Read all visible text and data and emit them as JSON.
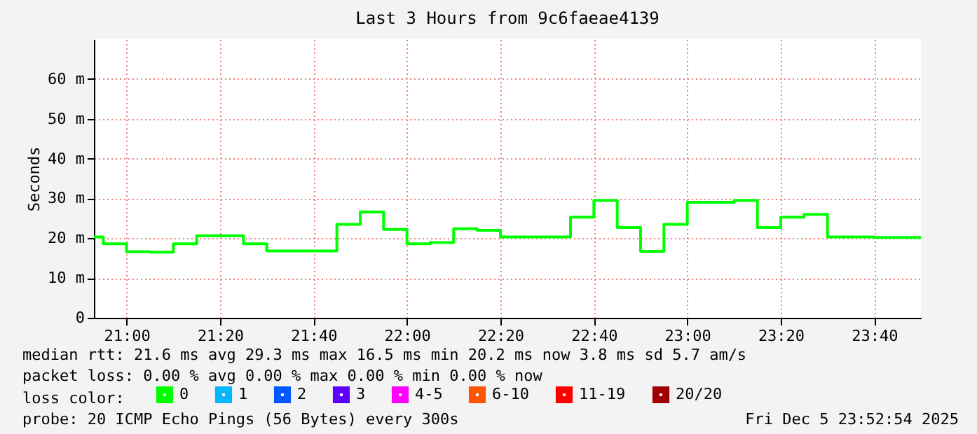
{
  "chart_data": {
    "type": "step",
    "title": "Last 3 Hours from 9c6faeae4139",
    "ylabel": "Seconds",
    "x": [
      "2025-12-05T20:53",
      "2025-12-05T20:55",
      "2025-12-05T21:00",
      "2025-12-05T21:05",
      "2025-12-05T21:10",
      "2025-12-05T21:15",
      "2025-12-05T21:20",
      "2025-12-05T21:25",
      "2025-12-05T21:30",
      "2025-12-05T21:35",
      "2025-12-05T21:40",
      "2025-12-05T21:45",
      "2025-12-05T21:50",
      "2025-12-05T21:55",
      "2025-12-05T22:00",
      "2025-12-05T22:05",
      "2025-12-05T22:10",
      "2025-12-05T22:15",
      "2025-12-05T22:20",
      "2025-12-05T22:25",
      "2025-12-05T22:30",
      "2025-12-05T22:35",
      "2025-12-05T22:40",
      "2025-12-05T22:45",
      "2025-12-05T22:50",
      "2025-12-05T22:55",
      "2025-12-05T23:00",
      "2025-12-05T23:05",
      "2025-12-05T23:10",
      "2025-12-05T23:15",
      "2025-12-05T23:20",
      "2025-12-05T23:25",
      "2025-12-05T23:30",
      "2025-12-05T23:35",
      "2025-12-05T23:40",
      "2025-12-05T23:45",
      "2025-12-05T23:50"
    ],
    "series": [
      {
        "name": "0",
        "color": "#00ff00",
        "values": [
          20.3,
          18.6,
          16.6,
          16.5,
          18.6,
          20.6,
          20.6,
          18.6,
          16.8,
          16.8,
          16.8,
          23.5,
          26.6,
          22.2,
          18.6,
          18.9,
          22.4,
          22.0,
          20.3,
          20.3,
          20.3,
          25.3,
          29.5,
          22.7,
          16.7,
          23.5,
          29.0,
          29.0,
          29.5,
          22.7,
          25.3,
          26.0,
          20.3,
          20.3,
          20.2,
          20.2,
          20.2
        ]
      },
      {
        "name": "1",
        "color": "#00b8ff",
        "values": [
          null,
          null,
          null,
          null,
          null,
          null,
          null,
          null,
          null,
          null,
          null,
          null,
          null,
          null,
          null,
          null,
          null,
          null,
          null,
          null,
          null,
          null,
          null,
          null,
          null,
          null,
          null,
          null,
          null,
          null,
          null,
          null,
          null,
          null,
          null,
          null,
          null
        ]
      },
      {
        "name": "2",
        "color": "#0059ff",
        "values": [
          null,
          null,
          null,
          null,
          null,
          null,
          null,
          null,
          null,
          null,
          null,
          null,
          null,
          null,
          null,
          null,
          null,
          null,
          null,
          null,
          null,
          null,
          null,
          null,
          null,
          null,
          null,
          null,
          null,
          null,
          null,
          null,
          null,
          null,
          null,
          null,
          null
        ]
      },
      {
        "name": "3",
        "color": "#5e00ff",
        "values": [
          null,
          null,
          null,
          null,
          null,
          null,
          null,
          null,
          null,
          null,
          null,
          null,
          null,
          null,
          null,
          null,
          null,
          null,
          null,
          null,
          null,
          null,
          null,
          null,
          null,
          null,
          null,
          null,
          null,
          null,
          null,
          null,
          null,
          null,
          null,
          null,
          null
        ]
      },
      {
        "name": "4-5",
        "color": "#ff00fe",
        "values": [
          null,
          null,
          null,
          null,
          null,
          null,
          null,
          null,
          null,
          null,
          null,
          null,
          null,
          null,
          null,
          null,
          null,
          null,
          null,
          null,
          null,
          null,
          null,
          null,
          null,
          null,
          null,
          null,
          null,
          null,
          null,
          null,
          null,
          null,
          null,
          null,
          null
        ]
      },
      {
        "name": "6-10",
        "color": "#ff5500",
        "values": [
          null,
          null,
          null,
          null,
          null,
          null,
          null,
          null,
          null,
          null,
          null,
          null,
          null,
          null,
          null,
          null,
          null,
          null,
          null,
          null,
          null,
          null,
          null,
          null,
          null,
          null,
          null,
          null,
          null,
          null,
          null,
          null,
          null,
          null,
          null,
          null,
          null
        ]
      },
      {
        "name": "11-19",
        "color": "#ff0000",
        "values": [
          null,
          null,
          null,
          null,
          null,
          null,
          null,
          null,
          null,
          null,
          null,
          null,
          null,
          null,
          null,
          null,
          null,
          null,
          null,
          null,
          null,
          null,
          null,
          null,
          null,
          null,
          null,
          null,
          null,
          null,
          null,
          null,
          null,
          null,
          null,
          null,
          null
        ]
      },
      {
        "name": "20/20",
        "color": "#a10000",
        "values": [
          null,
          null,
          null,
          null,
          null,
          null,
          null,
          null,
          null,
          null,
          null,
          null,
          null,
          null,
          null,
          null,
          null,
          null,
          null,
          null,
          null,
          null,
          null,
          null,
          null,
          null,
          null,
          null,
          null,
          null,
          null,
          null,
          null,
          null,
          null,
          null,
          null
        ]
      }
    ],
    "legend_title": "loss color:",
    "legend": "bottom",
    "xlim": [
      "2025-12-05T20:53",
      "2025-12-05T23:50"
    ],
    "xticks": [
      {
        "value": "2025-12-05T21:00",
        "label": "21:00"
      },
      {
        "value": "2025-12-05T21:20",
        "label": "21:20"
      },
      {
        "value": "2025-12-05T21:40",
        "label": "21:40"
      },
      {
        "value": "2025-12-05T22:00",
        "label": "22:00"
      },
      {
        "value": "2025-12-05T22:20",
        "label": "22:20"
      },
      {
        "value": "2025-12-05T22:40",
        "label": "22:40"
      },
      {
        "value": "2025-12-05T23:00",
        "label": "23:00"
      },
      {
        "value": "2025-12-05T23:20",
        "label": "23:20"
      },
      {
        "value": "2025-12-05T23:40",
        "label": "23:40"
      }
    ],
    "ylim": [
      0,
      70
    ],
    "yticks": [
      0,
      {
        "value": 10,
        "label": "10 m"
      },
      {
        "value": 20,
        "label": "20 m"
      },
      {
        "value": 30,
        "label": "30 m"
      },
      {
        "value": 40,
        "label": "40 m"
      },
      {
        "value": 50,
        "label": "50 m"
      },
      {
        "value": 60,
        "label": "60 m"
      }
    ],
    "grid": true,
    "line_style": "solid",
    "annotations": [
      "median rtt:  21.6 ms avg  29.3 ms max  16.5 ms min  20.2 ms now  3.8 ms sd  5.7   am/s",
      "packet loss: 0.00 % avg  0.00 % max  0.00 % min  0.00 % now",
      "probe:       20 ICMP Echo Pings (56 Bytes) every 300s",
      "Fri Dec  5 23:52:54 2025"
    ]
  }
}
